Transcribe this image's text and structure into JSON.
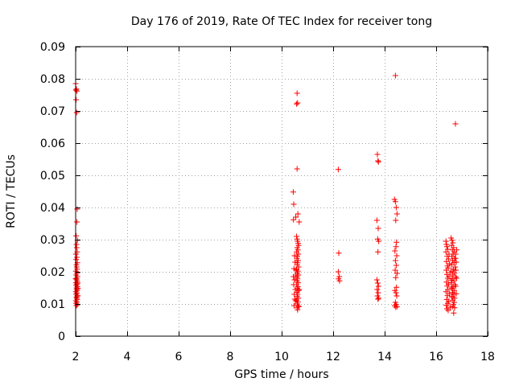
{
  "chart_data": {
    "type": "scatter",
    "title": "Day 176 of 2019, Rate Of TEC Index for receiver tong",
    "xlabel": "GPS time / hours",
    "ylabel": "ROTI / TECUs",
    "xlim": [
      2,
      18
    ],
    "ylim": [
      0,
      0.09
    ],
    "xticks": [
      2,
      4,
      6,
      8,
      10,
      12,
      14,
      16,
      18
    ],
    "xtick_labels": [
      "2",
      "4",
      "6",
      "8",
      "10",
      "12",
      "14",
      "16",
      "18"
    ],
    "yticks": [
      0,
      0.01,
      0.02,
      0.03,
      0.04,
      0.05,
      0.06,
      0.07,
      0.08,
      0.09
    ],
    "ytick_labels": [
      "0",
      "0.01",
      "0.02",
      "0.03",
      "0.04",
      "0.05",
      "0.06",
      "0.07",
      "0.08",
      "0.09"
    ],
    "grid": true,
    "marker": "plus",
    "color": "#ff0000",
    "series": [
      {
        "name": "ROTI",
        "points": [
          [
            2.01,
            0.0765
          ],
          [
            2.03,
            0.0768
          ],
          [
            2.05,
            0.0762
          ],
          [
            2.02,
            0.0735
          ],
          [
            2.04,
            0.0695
          ],
          [
            2.0,
            0.0785
          ],
          [
            2.06,
            0.0395
          ],
          [
            2.05,
            0.0355
          ],
          [
            2.02,
            0.0312
          ],
          [
            2.07,
            0.0298
          ],
          [
            2.03,
            0.0285
          ],
          [
            2.04,
            0.0275
          ],
          [
            2.06,
            0.0262
          ],
          [
            2.01,
            0.0255
          ],
          [
            2.05,
            0.0245
          ],
          [
            2.02,
            0.0238
          ],
          [
            2.07,
            0.0228
          ],
          [
            2.03,
            0.0222
          ],
          [
            2.04,
            0.0215
          ],
          [
            2.06,
            0.0208
          ],
          [
            2.01,
            0.0202
          ],
          [
            2.05,
            0.0196
          ],
          [
            2.02,
            0.019
          ],
          [
            2.07,
            0.0185
          ],
          [
            2.03,
            0.018
          ],
          [
            2.04,
            0.0175
          ],
          [
            2.06,
            0.017
          ],
          [
            2.01,
            0.0166
          ],
          [
            2.05,
            0.0162
          ],
          [
            2.02,
            0.0158
          ],
          [
            2.07,
            0.0154
          ],
          [
            2.03,
            0.015
          ],
          [
            2.04,
            0.0146
          ],
          [
            2.06,
            0.0142
          ],
          [
            2.01,
            0.0138
          ],
          [
            2.05,
            0.0134
          ],
          [
            2.02,
            0.013
          ],
          [
            2.07,
            0.0126
          ],
          [
            2.03,
            0.0122
          ],
          [
            2.04,
            0.0118
          ],
          [
            2.06,
            0.0114
          ],
          [
            2.01,
            0.011
          ],
          [
            2.05,
            0.0106
          ],
          [
            2.02,
            0.0102
          ],
          [
            2.07,
            0.0098
          ],
          [
            2.03,
            0.0095
          ],
          [
            2.08,
            0.0165
          ],
          [
            2.08,
            0.0125
          ],
          [
            2.0,
            0.0178
          ],
          [
            2.09,
            0.0148
          ],
          [
            10.45,
            0.0448
          ],
          [
            10.47,
            0.041
          ],
          [
            10.46,
            0.0362
          ],
          [
            10.6,
            0.0755
          ],
          [
            10.58,
            0.0722
          ],
          [
            10.62,
            0.0725
          ],
          [
            10.6,
            0.052
          ],
          [
            10.63,
            0.038
          ],
          [
            10.68,
            0.0355
          ],
          [
            10.55,
            0.037
          ],
          [
            10.5,
            0.025
          ],
          [
            10.52,
            0.023
          ],
          [
            10.48,
            0.021
          ],
          [
            10.55,
            0.019
          ],
          [
            10.5,
            0.0175
          ],
          [
            10.47,
            0.016
          ],
          [
            10.53,
            0.0145
          ],
          [
            10.49,
            0.013
          ],
          [
            10.51,
            0.0115
          ],
          [
            10.48,
            0.0095
          ],
          [
            10.54,
            0.011
          ],
          [
            10.46,
            0.0185
          ],
          [
            10.58,
            0.031
          ],
          [
            10.6,
            0.0302
          ],
          [
            10.62,
            0.0295
          ],
          [
            10.64,
            0.0288
          ],
          [
            10.66,
            0.0282
          ],
          [
            10.6,
            0.0275
          ],
          [
            10.63,
            0.0268
          ],
          [
            10.58,
            0.0262
          ],
          [
            10.65,
            0.0255
          ],
          [
            10.61,
            0.0248
          ],
          [
            10.59,
            0.0242
          ],
          [
            10.64,
            0.0235
          ],
          [
            10.62,
            0.0228
          ],
          [
            10.6,
            0.0222
          ],
          [
            10.66,
            0.0215
          ],
          [
            10.58,
            0.0208
          ],
          [
            10.63,
            0.0202
          ],
          [
            10.61,
            0.0196
          ],
          [
            10.65,
            0.019
          ],
          [
            10.59,
            0.0184
          ],
          [
            10.62,
            0.0178
          ],
          [
            10.6,
            0.0172
          ],
          [
            10.64,
            0.0166
          ],
          [
            10.58,
            0.016
          ],
          [
            10.63,
            0.0154
          ],
          [
            10.61,
            0.0148
          ],
          [
            10.66,
            0.0142
          ],
          [
            10.59,
            0.0136
          ],
          [
            10.62,
            0.013
          ],
          [
            10.6,
            0.0124
          ],
          [
            10.65,
            0.0118
          ],
          [
            10.58,
            0.0112
          ],
          [
            10.63,
            0.0106
          ],
          [
            10.61,
            0.01
          ],
          [
            10.64,
            0.0094
          ],
          [
            10.6,
            0.0088
          ],
          [
            10.62,
            0.0082
          ],
          [
            10.67,
            0.0092
          ],
          [
            10.68,
            0.0145
          ],
          [
            10.56,
            0.0205
          ],
          [
            12.2,
            0.0518
          ],
          [
            12.22,
            0.0258
          ],
          [
            12.2,
            0.02
          ],
          [
            12.24,
            0.0185
          ],
          [
            12.21,
            0.0178
          ],
          [
            12.25,
            0.0172
          ],
          [
            13.72,
            0.0565
          ],
          [
            13.74,
            0.0545
          ],
          [
            13.76,
            0.0542
          ],
          [
            13.7,
            0.036
          ],
          [
            13.75,
            0.0335
          ],
          [
            13.73,
            0.0302
          ],
          [
            13.77,
            0.0295
          ],
          [
            13.74,
            0.0262
          ],
          [
            13.7,
            0.0175
          ],
          [
            13.73,
            0.0165
          ],
          [
            13.76,
            0.0155
          ],
          [
            13.71,
            0.0145
          ],
          [
            13.75,
            0.0135
          ],
          [
            13.72,
            0.0125
          ],
          [
            13.77,
            0.0118
          ],
          [
            13.74,
            0.0115
          ],
          [
            14.42,
            0.081
          ],
          [
            14.38,
            0.0425
          ],
          [
            14.42,
            0.0418
          ],
          [
            14.45,
            0.04
          ],
          [
            14.48,
            0.038
          ],
          [
            14.43,
            0.036
          ],
          [
            14.46,
            0.0292
          ],
          [
            14.44,
            0.0278
          ],
          [
            14.4,
            0.0265
          ],
          [
            14.47,
            0.025
          ],
          [
            14.42,
            0.0235
          ],
          [
            14.45,
            0.022
          ],
          [
            14.41,
            0.0205
          ],
          [
            14.48,
            0.0195
          ],
          [
            14.43,
            0.0182
          ],
          [
            14.46,
            0.0152
          ],
          [
            14.4,
            0.0142
          ],
          [
            14.44,
            0.0135
          ],
          [
            14.47,
            0.0125
          ],
          [
            14.42,
            0.0105
          ],
          [
            14.45,
            0.0098
          ],
          [
            14.39,
            0.0095
          ],
          [
            14.48,
            0.0092
          ],
          [
            14.43,
            0.009
          ],
          [
            16.38,
            0.0295
          ],
          [
            16.4,
            0.0285
          ],
          [
            16.42,
            0.0278
          ],
          [
            16.45,
            0.027
          ],
          [
            16.38,
            0.0262
          ],
          [
            16.5,
            0.0255
          ],
          [
            16.43,
            0.0248
          ],
          [
            16.48,
            0.024
          ],
          [
            16.4,
            0.0232
          ],
          [
            16.52,
            0.0225
          ],
          [
            16.44,
            0.0218
          ],
          [
            16.47,
            0.0212
          ],
          [
            16.39,
            0.0205
          ],
          [
            16.55,
            0.0198
          ],
          [
            16.42,
            0.0192
          ],
          [
            16.5,
            0.0186
          ],
          [
            16.45,
            0.018
          ],
          [
            16.58,
            0.0174
          ],
          [
            16.4,
            0.0168
          ],
          [
            16.48,
            0.0162
          ],
          [
            16.43,
            0.0156
          ],
          [
            16.6,
            0.015
          ],
          [
            16.46,
            0.0144
          ],
          [
            16.38,
            0.0138
          ],
          [
            16.52,
            0.0132
          ],
          [
            16.44,
            0.0126
          ],
          [
            16.62,
            0.012
          ],
          [
            16.41,
            0.0114
          ],
          [
            16.49,
            0.0108
          ],
          [
            16.45,
            0.0102
          ],
          [
            16.39,
            0.0096
          ],
          [
            16.55,
            0.009
          ],
          [
            16.42,
            0.0085
          ],
          [
            16.47,
            0.008
          ],
          [
            16.58,
            0.0305
          ],
          [
            16.62,
            0.0298
          ],
          [
            16.65,
            0.029
          ],
          [
            16.6,
            0.0282
          ],
          [
            16.68,
            0.0275
          ],
          [
            16.63,
            0.0268
          ],
          [
            16.7,
            0.0262
          ],
          [
            16.66,
            0.0255
          ],
          [
            16.61,
            0.0248
          ],
          [
            16.72,
            0.0242
          ],
          [
            16.64,
            0.0235
          ],
          [
            16.69,
            0.0228
          ],
          [
            16.6,
            0.0222
          ],
          [
            16.74,
            0.0215
          ],
          [
            16.67,
            0.0208
          ],
          [
            16.62,
            0.0202
          ],
          [
            16.71,
            0.0196
          ],
          [
            16.65,
            0.019
          ],
          [
            16.76,
            0.0184
          ],
          [
            16.63,
            0.0178
          ],
          [
            16.69,
            0.0172
          ],
          [
            16.6,
            0.0166
          ],
          [
            16.73,
            0.016
          ],
          [
            16.66,
            0.0154
          ],
          [
            16.62,
            0.0148
          ],
          [
            16.7,
            0.0142
          ],
          [
            16.64,
            0.0136
          ],
          [
            16.68,
            0.013
          ],
          [
            16.61,
            0.0124
          ],
          [
            16.72,
            0.0118
          ],
          [
            16.65,
            0.0112
          ],
          [
            16.7,
            0.0105
          ],
          [
            16.67,
            0.0098
          ],
          [
            16.63,
            0.0092
          ],
          [
            16.72,
            0.0088
          ],
          [
            16.68,
            0.0072
          ],
          [
            16.76,
            0.0255
          ],
          [
            16.78,
            0.023
          ],
          [
            16.77,
            0.0205
          ],
          [
            16.79,
            0.018
          ],
          [
            16.76,
            0.0155
          ],
          [
            16.78,
            0.0132
          ],
          [
            16.8,
            0.0268
          ],
          [
            16.75,
            0.0242
          ],
          [
            16.75,
            0.066
          ]
        ]
      }
    ]
  }
}
